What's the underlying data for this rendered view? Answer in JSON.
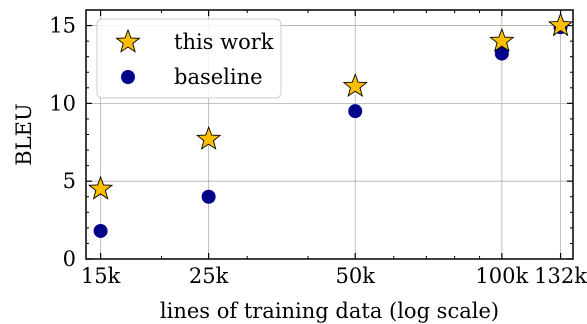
{
  "chart_data": {
    "type": "scatter",
    "xlabel": "lines of training data (log scale)",
    "ylabel": "BLEU",
    "xscale": "log",
    "xlim": [
      14000,
      140000
    ],
    "ylim": [
      0,
      16
    ],
    "xticks": [
      {
        "value": 15000,
        "label": "15k"
      },
      {
        "value": 25000,
        "label": "25k"
      },
      {
        "value": 50000,
        "label": "50k"
      },
      {
        "value": 100000,
        "label": "100k"
      },
      {
        "value": 132000,
        "label": "132k"
      }
    ],
    "yticks": [
      {
        "value": 0,
        "label": "0"
      },
      {
        "value": 5,
        "label": "5"
      },
      {
        "value": 10,
        "label": "10"
      },
      {
        "value": 15,
        "label": "15"
      }
    ],
    "grid": true,
    "legend_position": "top-left",
    "series": [
      {
        "name": "this work",
        "marker": "star",
        "color": "#FFBF00",
        "points": [
          {
            "x": 15000,
            "y": 4.5
          },
          {
            "x": 25000,
            "y": 7.7
          },
          {
            "x": 50000,
            "y": 11.1
          },
          {
            "x": 100000,
            "y": 14.0
          },
          {
            "x": 132000,
            "y": 15.0
          }
        ]
      },
      {
        "name": "baseline",
        "marker": "circle",
        "color": "#00008B",
        "points": [
          {
            "x": 15000,
            "y": 1.8
          },
          {
            "x": 25000,
            "y": 4.0
          },
          {
            "x": 50000,
            "y": 9.5
          },
          {
            "x": 100000,
            "y": 13.2
          },
          {
            "x": 132000,
            "y": 14.9
          }
        ]
      }
    ]
  }
}
